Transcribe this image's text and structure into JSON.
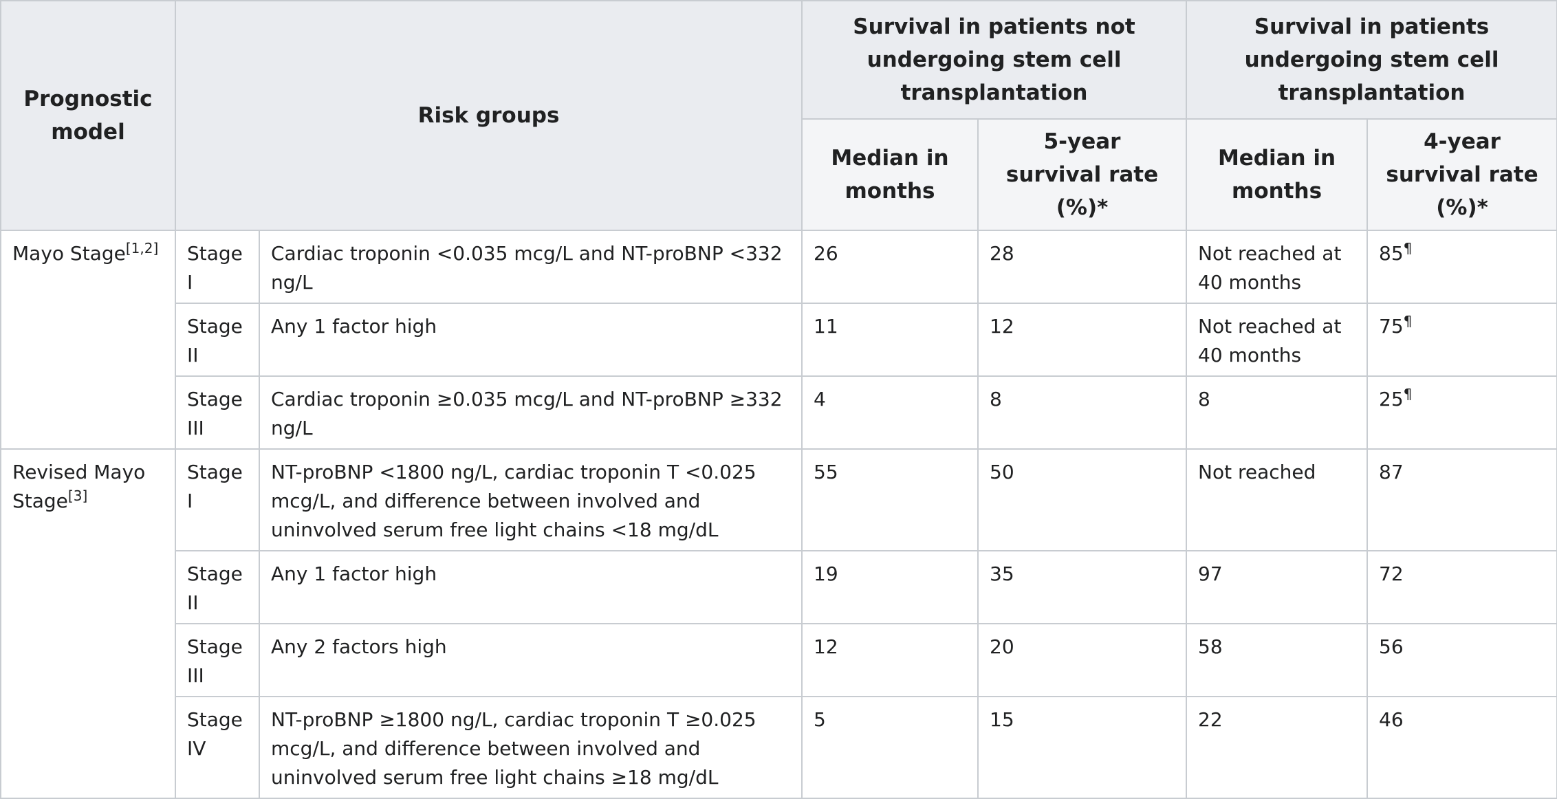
{
  "table": {
    "headers": {
      "prognostic_model": "Prognostic model",
      "risk_groups": "Risk groups",
      "not_undergoing": "Survival in patients not undergoing stem cell transplantation",
      "undergoing": "Survival in patients undergoing stem cell transplantation",
      "median_not": "Median in months",
      "rate_5yr": "5-year survival rate (%)*",
      "median_und": "Median in months",
      "rate_4yr": "4-year survival rate (%)*"
    },
    "models": [
      {
        "name": "Mayo Stage",
        "ref": "[1,2]",
        "rows": [
          {
            "stage": "Stage I",
            "criteria": "Cardiac troponin <0.035 mcg/L and NT-proBNP <332 ng/L",
            "median_not": "26",
            "rate_5yr": "28",
            "median_und": "Not reached at 40 months",
            "rate_4yr": "85",
            "rate_4yr_note": "¶"
          },
          {
            "stage": "Stage II",
            "criteria": "Any 1 factor high",
            "median_not": "11",
            "rate_5yr": "12",
            "median_und": "Not reached at 40 months",
            "rate_4yr": "75",
            "rate_4yr_note": "¶"
          },
          {
            "stage": "Stage III",
            "criteria": "Cardiac troponin ≥0.035 mcg/L and NT-proBNP ≥332 ng/L",
            "median_not": "4",
            "rate_5yr": "8",
            "median_und": "8",
            "rate_4yr": "25",
            "rate_4yr_note": "¶"
          }
        ]
      },
      {
        "name": "Revised Mayo Stage",
        "ref": "[3]",
        "rows": [
          {
            "stage": "Stage I",
            "criteria": "NT-proBNP <1800 ng/L, cardiac troponin T <0.025 mcg/L, and difference between involved and uninvolved serum free light chains <18 mg/dL",
            "median_not": "55",
            "rate_5yr": "50",
            "median_und": "Not reached",
            "rate_4yr": "87"
          },
          {
            "stage": "Stage II",
            "criteria": "Any 1 factor high",
            "median_not": "19",
            "rate_5yr": "35",
            "median_und": "97",
            "rate_4yr": "72"
          },
          {
            "stage": "Stage III",
            "criteria": "Any 2 factors high",
            "median_not": "12",
            "rate_5yr": "20",
            "median_und": "58",
            "rate_4yr": "56"
          },
          {
            "stage": "Stage IV",
            "criteria": "NT-proBNP ≥1800 ng/L, cardiac troponin T ≥0.025 mcg/L, and difference between involved and uninvolved serum free light chains ≥18 mg/dL",
            "median_not": "5",
            "rate_5yr": "15",
            "median_und": "22",
            "rate_4yr": "46"
          }
        ]
      }
    ]
  }
}
